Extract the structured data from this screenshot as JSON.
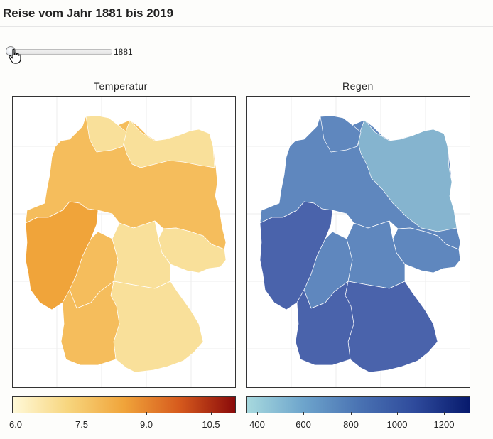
{
  "page": {
    "title": "Reise vom Jahr 1881 bis 2019"
  },
  "slider": {
    "value": "1881",
    "fraction": 0.0
  },
  "panels": [
    {
      "title": "Temperatur",
      "legend_ticks": [
        "6.0",
        "7.5",
        "9.0",
        "10.5"
      ],
      "colors": {
        "light": "#f9e09a",
        "mid": "#f5bd5c",
        "dark": "#f0a43a"
      }
    },
    {
      "title": "Regen",
      "legend_ticks": [
        "400",
        "600",
        "800",
        "1000",
        "1200"
      ],
      "colors": {
        "light": "#85b4cf",
        "mid": "#5f87be",
        "dark": "#4a63ab"
      }
    }
  ],
  "legend_gradients": {
    "temperature": [
      "#fff9d9",
      "#f7d57d",
      "#f0a43a",
      "#d65a1d",
      "#8a0a0a"
    ],
    "rain": [
      "#a7d9de",
      "#6ea5cc",
      "#4a73b3",
      "#2f4b9c",
      "#071a6d"
    ]
  }
}
